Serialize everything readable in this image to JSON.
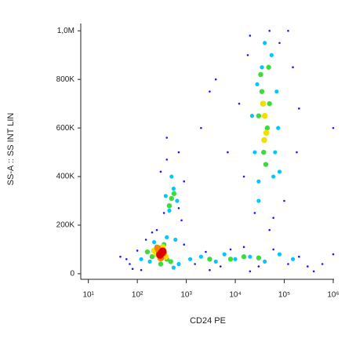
{
  "chart_data": {
    "type": "scatter",
    "x_label": "CD24 PE",
    "y_label": "SS-A :: SS INT LIN",
    "x_scale": "log",
    "xlim": [
      7,
      1000000
    ],
    "xticks": [
      {
        "value": 10,
        "label": "10¹"
      },
      {
        "value": 100,
        "label": "10²"
      },
      {
        "value": 1000,
        "label": "10³"
      },
      {
        "value": 10000,
        "label": "10⁴"
      },
      {
        "value": 100000,
        "label": "10⁵"
      },
      {
        "value": 1000000,
        "label": "10⁶"
      }
    ],
    "ylim": [
      -23000,
      1030000
    ],
    "yticks": [
      0,
      {
        "value": 200000,
        "label": "200K"
      },
      {
        "value": 400000,
        "label": "400K"
      },
      {
        "value": 600000,
        "label": "600K"
      },
      {
        "value": 800000,
        "label": "800K"
      },
      {
        "value": 1000000,
        "label": "1,0M"
      }
    ],
    "series": [
      {
        "color": "#1a1aff",
        "x": [
          60,
          80,
          45,
          120,
          150,
          100,
          70,
          200,
          900,
          1500,
          2500,
          5000,
          8000,
          15000,
          30000,
          60000,
          120000,
          200000,
          300000,
          400000,
          20000,
          3000,
          350,
          300,
          700,
          900,
          250,
          400,
          800,
          15000,
          12000,
          18000,
          80000,
          150000,
          180000,
          100000,
          25000,
          60000,
          50000,
          20000,
          120000,
          7000,
          3000,
          4000,
          200000,
          1000000,
          1000000,
          2000,
          700,
          400,
          50000,
          600000
        ],
        "values": [
          60000,
          20000,
          70000,
          15000,
          140000,
          95000,
          40000,
          170000,
          120000,
          40000,
          90000,
          30000,
          100000,
          110000,
          30000,
          100000,
          40000,
          70000,
          30000,
          10000,
          10000,
          15000,
          250000,
          420000,
          500000,
          380000,
          180000,
          470000,
          220000,
          400000,
          700000,
          900000,
          950000,
          850000,
          500000,
          300000,
          250000,
          230000,
          1000000,
          980000,
          1000000,
          500000,
          750000,
          800000,
          680000,
          80000,
          600000,
          600000,
          270000,
          560000,
          180000,
          40000
        ]
      },
      {
        "color": "#00c8ff",
        "x": [
          180,
          220,
          120,
          400,
          600,
          700,
          550,
          1200,
          2000,
          4000,
          6000,
          10000,
          20000,
          40000,
          80000,
          150000,
          450,
          550,
          380,
          650,
          500,
          30000,
          25000,
          35000,
          55000,
          70000,
          60000,
          22000,
          75000,
          40000,
          28000,
          65000,
          30000,
          80000
        ],
        "values": [
          50000,
          130000,
          60000,
          150000,
          140000,
          40000,
          25000,
          60000,
          70000,
          50000,
          80000,
          60000,
          70000,
          50000,
          80000,
          60000,
          260000,
          350000,
          320000,
          300000,
          400000,
          300000,
          500000,
          850000,
          900000,
          750000,
          400000,
          650000,
          600000,
          950000,
          780000,
          500000,
          380000,
          420000
        ]
      },
      {
        "color": "#3cdc3c",
        "x": [
          200,
          250,
          350,
          480,
          160,
          500,
          450,
          560,
          35000,
          45000,
          38000,
          42000,
          33000,
          50000,
          30000,
          48000,
          3000,
          15000,
          30000,
          8000,
          400,
          300
        ],
        "values": [
          70000,
          110000,
          120000,
          50000,
          90000,
          310000,
          280000,
          330000,
          750000,
          600000,
          500000,
          450000,
          820000,
          700000,
          650000,
          850000,
          60000,
          70000,
          65000,
          60000,
          60000,
          40000
        ]
      },
      {
        "color": "#f0e000",
        "x": [
          250,
          330,
          380,
          220,
          40000,
          37000,
          43000,
          39000
        ],
        "values": [
          80000,
          110000,
          70000,
          95000,
          650000,
          700000,
          580000,
          550000
        ]
      },
      {
        "color": "#ff8000",
        "x": [
          280,
          340,
          300,
          260
        ],
        "values": [
          90000,
          85000,
          65000,
          105000
        ]
      },
      {
        "color": "#e00000",
        "x": [
          310,
          290,
          330
        ],
        "values": [
          85000,
          78000,
          92000
        ]
      }
    ]
  }
}
